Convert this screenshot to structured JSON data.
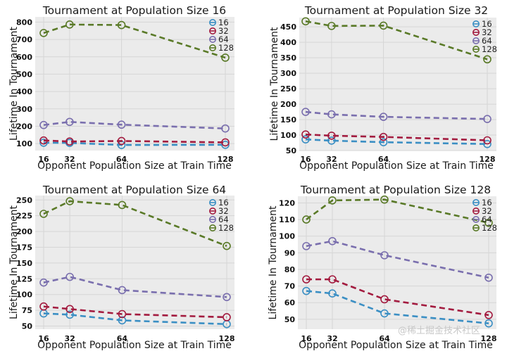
{
  "chart_data": [
    {
      "type": "line",
      "title": "Tournament at Population Size 16",
      "xlabel": "Opponent Population Size at Train Time",
      "ylabel": "Lifetime In Tournament",
      "x": [
        16,
        32,
        64,
        128
      ],
      "xticks": [
        "16",
        "32",
        "64",
        "128"
      ],
      "yticks": [
        100,
        200,
        300,
        400,
        500,
        600,
        700,
        800
      ],
      "ylim": [
        60,
        830
      ],
      "grid": true,
      "legend": "top-right",
      "series": [
        {
          "name": "16",
          "values": [
            105,
            104,
            92,
            93
          ]
        },
        {
          "name": "32",
          "values": [
            118,
            112,
            115,
            107
          ]
        },
        {
          "name": "64",
          "values": [
            207,
            225,
            209,
            187
          ]
        },
        {
          "name": "128",
          "values": [
            737,
            786,
            783,
            595
          ]
        }
      ]
    },
    {
      "type": "line",
      "title": "Tournament at Population Size 32",
      "xlabel": "Opponent Population Size at Train Time",
      "ylabel": "Lifetime In Tournament",
      "x": [
        16,
        32,
        64,
        128
      ],
      "xticks": [
        "16",
        "32",
        "64",
        "128"
      ],
      "yticks": [
        50,
        100,
        150,
        200,
        250,
        300,
        350,
        400,
        450
      ],
      "ylim": [
        50,
        480
      ],
      "grid": true,
      "legend": "top-right",
      "series": [
        {
          "name": "16",
          "values": [
            86,
            82,
            77,
            71
          ]
        },
        {
          "name": "32",
          "values": [
            102,
            98,
            94,
            83
          ]
        },
        {
          "name": "64",
          "values": [
            175,
            167,
            159,
            152
          ]
        },
        {
          "name": "128",
          "values": [
            468,
            453,
            454,
            345
          ]
        }
      ]
    },
    {
      "type": "line",
      "title": "Tournament at Population Size 64",
      "xlabel": "Opponent Population Size at Train Time",
      "ylabel": "Lifetime In Tournament",
      "x": [
        16,
        32,
        64,
        128
      ],
      "xticks": [
        "16",
        "32",
        "64",
        "128"
      ],
      "yticks": [
        50,
        75,
        100,
        125,
        150,
        175,
        200,
        225,
        250
      ],
      "ylim": [
        45,
        257
      ],
      "grid": true,
      "legend": "top-right",
      "series": [
        {
          "name": "16",
          "values": [
            70,
            68,
            59,
            53
          ]
        },
        {
          "name": "32",
          "values": [
            81,
            77,
            69,
            64
          ]
        },
        {
          "name": "64",
          "values": [
            119,
            128,
            107,
            96
          ]
        },
        {
          "name": "128",
          "values": [
            228,
            248,
            242,
            177
          ]
        }
      ]
    },
    {
      "type": "line",
      "title": "Tournament at Population Size 128",
      "xlabel": "Opponent Population Size at Train Time",
      "ylabel": "Lifetime In Tournament",
      "x": [
        16,
        32,
        64,
        128
      ],
      "xticks": [
        "16",
        "32",
        "64",
        "128"
      ],
      "yticks": [
        50,
        60,
        70,
        80,
        90,
        100,
        110,
        120
      ],
      "ylim": [
        44,
        124
      ],
      "grid": true,
      "legend": "top-right",
      "series": [
        {
          "name": "16",
          "values": [
            67,
            65.5,
            53.5,
            47.5
          ]
        },
        {
          "name": "32",
          "values": [
            74,
            74,
            62,
            52.5
          ]
        },
        {
          "name": "64",
          "values": [
            94,
            97,
            88.5,
            75
          ]
        },
        {
          "name": "128",
          "values": [
            110,
            121.5,
            122,
            108
          ]
        }
      ]
    }
  ],
  "series_colors": {
    "16": "#3b8fc4",
    "32": "#a31b3f",
    "64": "#7a6fae",
    "128": "#5a7a28"
  },
  "watermark": "@稀土掘金技术社区"
}
